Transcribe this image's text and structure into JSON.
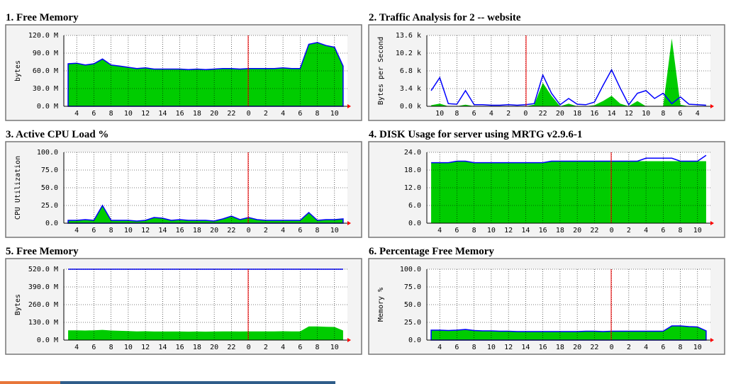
{
  "chart_data": [
    {
      "type": "area",
      "title": "1. Free Memory",
      "ylabel": "bytes",
      "categories": [
        null,
        "4",
        null,
        "6",
        null,
        "8",
        null,
        "10",
        null,
        "12",
        null,
        "14",
        null,
        "16",
        null,
        "18",
        null,
        "20",
        null,
        "22",
        null,
        "0",
        null,
        "2",
        null,
        "4",
        null,
        "6",
        null,
        "8",
        null,
        "10",
        null
      ],
      "series": [
        {
          "fill": "#00cc00",
          "color": "#0000ff",
          "values": [
            72,
            73,
            70,
            72,
            80,
            70,
            68,
            66,
            64,
            65,
            63,
            63,
            63,
            63,
            62,
            63,
            62,
            63,
            64,
            64,
            63,
            64,
            64,
            64,
            64,
            65,
            64,
            64,
            105,
            108,
            103,
            100,
            68
          ]
        }
      ],
      "ylim": [
        0,
        120
      ],
      "yticks": [
        {
          "value": 0,
          "label": "0.0 M"
        },
        {
          "value": 30,
          "label": "30.0 M"
        },
        {
          "value": 60,
          "label": "60.0 M"
        },
        {
          "value": 90,
          "label": "90.0 M"
        },
        {
          "value": 120,
          "label": "120.0 M"
        }
      ],
      "grid": true
    },
    {
      "type": "area",
      "title": "2. Traffic Analysis for 2 -- website",
      "ylabel": "Bytes per Second",
      "categories": [
        null,
        "10",
        null,
        "8",
        null,
        "6",
        null,
        "4",
        null,
        "2",
        null,
        "0",
        null,
        "22",
        null,
        "20",
        null,
        "18",
        null,
        "16",
        null,
        "14",
        null,
        "12",
        null,
        "10",
        null,
        "8",
        null,
        "6",
        null,
        "4",
        null
      ],
      "series": [
        {
          "fill": "#00cc00",
          "values": [
            0.2,
            0.5,
            0,
            0,
            0.3,
            0,
            0,
            0,
            0,
            0,
            0,
            0,
            0.3,
            4.5,
            2,
            0,
            0.5,
            0,
            0,
            0.2,
            1,
            2,
            0.5,
            0,
            1,
            0,
            0,
            0,
            13,
            0.3,
            0,
            0,
            0
          ]
        },
        {
          "color": "#0000ff",
          "values": [
            3,
            5.5,
            0.5,
            0.4,
            3,
            0.3,
            0.3,
            0.2,
            0.2,
            0.3,
            0.2,
            0.3,
            0.5,
            6,
            2.5,
            0.3,
            1.5,
            0.4,
            0.3,
            0.8,
            4,
            7,
            3.5,
            0.3,
            2.5,
            3,
            1.5,
            2.5,
            0.5,
            1.8,
            0.4,
            0.3,
            0.2
          ]
        }
      ],
      "ylim": [
        0,
        13.6
      ],
      "yticks": [
        {
          "value": 0,
          "label": "0.0 k"
        },
        {
          "value": 3.4,
          "label": "3.4 k"
        },
        {
          "value": 6.8,
          "label": "6.8 k"
        },
        {
          "value": 10.2,
          "label": "10.2 k"
        },
        {
          "value": 13.6,
          "label": "13.6 k"
        }
      ],
      "grid": true
    },
    {
      "type": "area",
      "title": "3. Active CPU Load %",
      "ylabel": "CPU Utilization",
      "categories": [
        null,
        "4",
        null,
        "6",
        null,
        "8",
        null,
        "10",
        null,
        "12",
        null,
        "14",
        null,
        "16",
        null,
        "18",
        null,
        "20",
        null,
        "22",
        null,
        "0",
        null,
        "2",
        null,
        "4",
        null,
        "6",
        null,
        "8",
        null,
        "10",
        null
      ],
      "series": [
        {
          "fill": "#00cc00",
          "color": "#0000ff",
          "values": [
            4,
            4,
            5,
            4,
            25,
            4,
            4,
            4,
            3,
            4,
            8,
            7,
            4,
            5,
            4,
            4,
            4,
            3,
            6,
            10,
            5,
            8,
            5,
            4,
            4,
            4,
            4,
            4,
            15,
            4,
            5,
            5,
            6
          ]
        }
      ],
      "ylim": [
        0,
        100
      ],
      "yticks": [
        {
          "value": 0,
          "label": "0.0"
        },
        {
          "value": 25,
          "label": "25.0"
        },
        {
          "value": 50,
          "label": "50.0"
        },
        {
          "value": 75,
          "label": "75.0"
        },
        {
          "value": 100,
          "label": "100.0"
        }
      ],
      "grid": true
    },
    {
      "type": "area",
      "title": "4. DISK Usage for server using MRTG v2.9.6-1",
      "categories": [
        null,
        "4",
        null,
        "6",
        null,
        "8",
        null,
        "10",
        null,
        "12",
        null,
        "14",
        null,
        "16",
        null,
        "18",
        null,
        "20",
        null,
        "22",
        null,
        "0",
        null,
        "2",
        null,
        "4",
        null,
        "6",
        null,
        "8",
        null,
        "10",
        null
      ],
      "series": [
        {
          "fill": "#00cc00",
          "values": [
            20.5,
            20.5,
            20.5,
            21,
            21,
            20.5,
            20.5,
            20.5,
            20.5,
            20.5,
            20.5,
            20.5,
            20.5,
            20.5,
            21,
            21,
            21,
            21,
            21,
            21,
            21,
            21,
            21,
            21,
            21,
            21,
            21,
            21,
            21,
            21,
            21,
            21,
            21
          ]
        },
        {
          "color": "#0000ff",
          "values": [
            20.5,
            20.5,
            20.5,
            21,
            21,
            20.5,
            20.5,
            20.5,
            20.5,
            20.5,
            20.5,
            20.5,
            20.5,
            20.5,
            21,
            21,
            21,
            21,
            21,
            21,
            21,
            21,
            21,
            21,
            21,
            22,
            22,
            22,
            22,
            21,
            21,
            21,
            23
          ]
        }
      ],
      "ylim": [
        0,
        24
      ],
      "yticks": [
        {
          "value": 0,
          "label": "0.0"
        },
        {
          "value": 6,
          "label": "6.0"
        },
        {
          "value": 12,
          "label": "12.0"
        },
        {
          "value": 18,
          "label": "18.0"
        },
        {
          "value": 24,
          "label": "24.0"
        }
      ],
      "grid": true
    },
    {
      "type": "area",
      "title": "5. Free Memory",
      "ylabel": "Bytes",
      "categories": [
        null,
        "4",
        null,
        "6",
        null,
        "8",
        null,
        "10",
        null,
        "12",
        null,
        "14",
        null,
        "16",
        null,
        "18",
        null,
        "20",
        null,
        "22",
        null,
        "0",
        null,
        "2",
        null,
        "4",
        null,
        "6",
        null,
        "8",
        null,
        "10",
        null
      ],
      "series": [
        {
          "fill": "#00cc00",
          "values": [
            72,
            72,
            70,
            72,
            75,
            70,
            68,
            66,
            64,
            65,
            63,
            63,
            63,
            63,
            62,
            63,
            62,
            63,
            64,
            64,
            63,
            64,
            64,
            64,
            64,
            65,
            64,
            64,
            100,
            100,
            98,
            96,
            70
          ]
        },
        {
          "color": "#0000ff",
          "values": [
            520,
            520,
            520,
            520,
            520,
            520,
            520,
            520,
            520,
            520,
            520,
            520,
            520,
            520,
            520,
            520,
            520,
            520,
            520,
            520,
            520,
            520,
            520,
            520,
            520,
            520,
            520,
            520,
            520,
            520,
            520,
            520,
            520
          ]
        }
      ],
      "ylim": [
        0,
        520
      ],
      "yticks": [
        {
          "value": 0,
          "label": "0.0 M"
        },
        {
          "value": 130,
          "label": "130.0 M"
        },
        {
          "value": 260,
          "label": "260.0 M"
        },
        {
          "value": 390,
          "label": "390.0 M"
        },
        {
          "value": 520,
          "label": "520.0 M"
        }
      ],
      "grid": true
    },
    {
      "type": "area",
      "title": "6. Percentage Free Memory",
      "ylabel": "Memory %",
      "categories": [
        null,
        "4",
        null,
        "6",
        null,
        "8",
        null,
        "10",
        null,
        "12",
        null,
        "14",
        null,
        "16",
        null,
        "18",
        null,
        "20",
        null,
        "22",
        null,
        "0",
        null,
        "2",
        null,
        "4",
        null,
        "6",
        null,
        "8",
        null,
        "10",
        null
      ],
      "series": [
        {
          "fill": "#00cc00",
          "color": "#0000ff",
          "values": [
            14,
            14,
            13.5,
            14,
            15,
            13.5,
            13,
            13,
            12.5,
            12.5,
            12,
            12,
            12,
            12,
            12,
            12,
            12,
            12,
            12.5,
            12.5,
            12,
            12.5,
            12.5,
            12.5,
            12.5,
            12.5,
            12.5,
            12.5,
            20,
            20,
            19,
            18.5,
            13
          ]
        }
      ],
      "ylim": [
        0,
        100
      ],
      "yticks": [
        {
          "value": 0,
          "label": "0.0"
        },
        {
          "value": 25,
          "label": "25.0"
        },
        {
          "value": 50,
          "label": "50.0"
        },
        {
          "value": 75,
          "label": "75.0"
        },
        {
          "value": 100,
          "label": "100.0"
        }
      ],
      "grid": true
    }
  ]
}
